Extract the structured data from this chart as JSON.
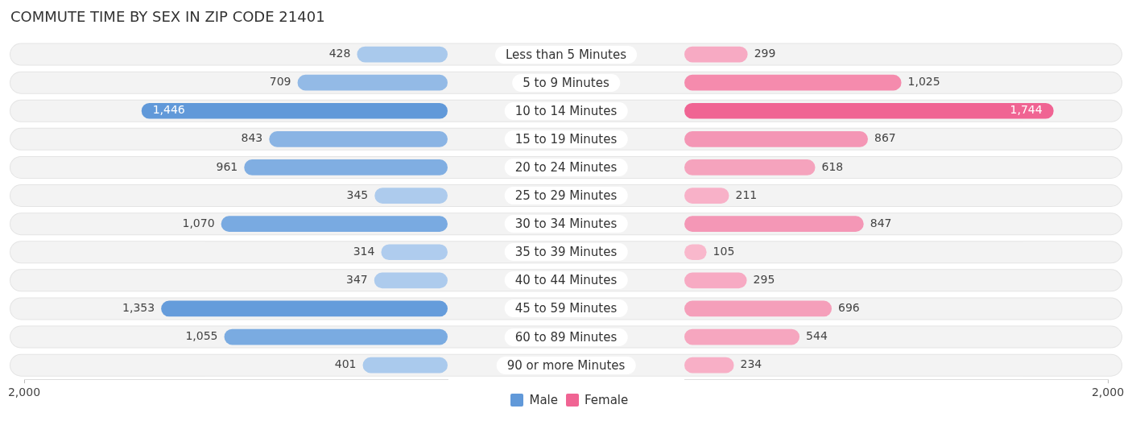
{
  "chart_data": [
    {
      "type": "bar",
      "orientation": "horizontal",
      "title": "COMMUTE TIME BY SEX IN ZIP CODE 21401",
      "categories": [
        "Less than 5 Minutes",
        "5 to 9 Minutes",
        "10 to 14 Minutes",
        "15 to 19 Minutes",
        "20 to 24 Minutes",
        "25 to 29 Minutes",
        "30 to 34 Minutes",
        "35 to 39 Minutes",
        "40 to 44 Minutes",
        "45 to 59 Minutes",
        "60 to 89 Minutes",
        "90 or more Minutes"
      ],
      "series": [
        {
          "name": "Male",
          "color": "#6199d9",
          "values": [
            428,
            709,
            1446,
            843,
            961,
            345,
            1070,
            314,
            347,
            1353,
            1055,
            401
          ],
          "value_labels": [
            "428",
            "709",
            "1,446",
            "843",
            "961",
            "345",
            "1,070",
            "314",
            "347",
            "1,353",
            "1,055",
            "401"
          ],
          "colors": [
            "#a9c9ec",
            "#93bae6",
            "#6199d9",
            "#8ab4e4",
            "#80aee2",
            "#adcbed",
            "#79aae1",
            "#afccee",
            "#adcbed",
            "#659cdb",
            "#7aabe1",
            "#aacaed"
          ]
        }
      ],
      "xlim": [
        2000,
        0
      ],
      "xticks": [
        {
          "value": 2000,
          "label": "2,000"
        }
      ],
      "legend": "bottom right"
    },
    {
      "type": "bar",
      "orientation": "horizontal",
      "categories": [
        "Less than 5 Minutes",
        "5 to 9 Minutes",
        "10 to 14 Minutes",
        "15 to 19 Minutes",
        "20 to 24 Minutes",
        "25 to 29 Minutes",
        "30 to 34 Minutes",
        "35 to 39 Minutes",
        "40 to 44 Minutes",
        "45 to 59 Minutes",
        "60 to 89 Minutes",
        "90 or more Minutes"
      ],
      "series": [
        {
          "name": "Female",
          "color": "#f06493",
          "values": [
            299,
            1025,
            1744,
            867,
            618,
            211,
            847,
            105,
            295,
            696,
            544,
            234
          ],
          "value_labels": [
            "299",
            "1,025",
            "1,744",
            "867",
            "618",
            "211",
            "847",
            "105",
            "295",
            "696",
            "544",
            "234"
          ],
          "colors": [
            "#f7aac3",
            "#f58bad",
            "#f06493",
            "#f496b5",
            "#f5a3bd",
            "#f8b1c8",
            "#f497b6",
            "#f9b8cc",
            "#f7aac3",
            "#f59fba",
            "#f6a6bf",
            "#f8afc6"
          ]
        }
      ],
      "xlim": [
        0,
        2000
      ],
      "xticks": [
        {
          "value": 2000,
          "label": "2,000"
        }
      ],
      "legend": "bottom left",
      "tick_labels": "x"
    }
  ]
}
